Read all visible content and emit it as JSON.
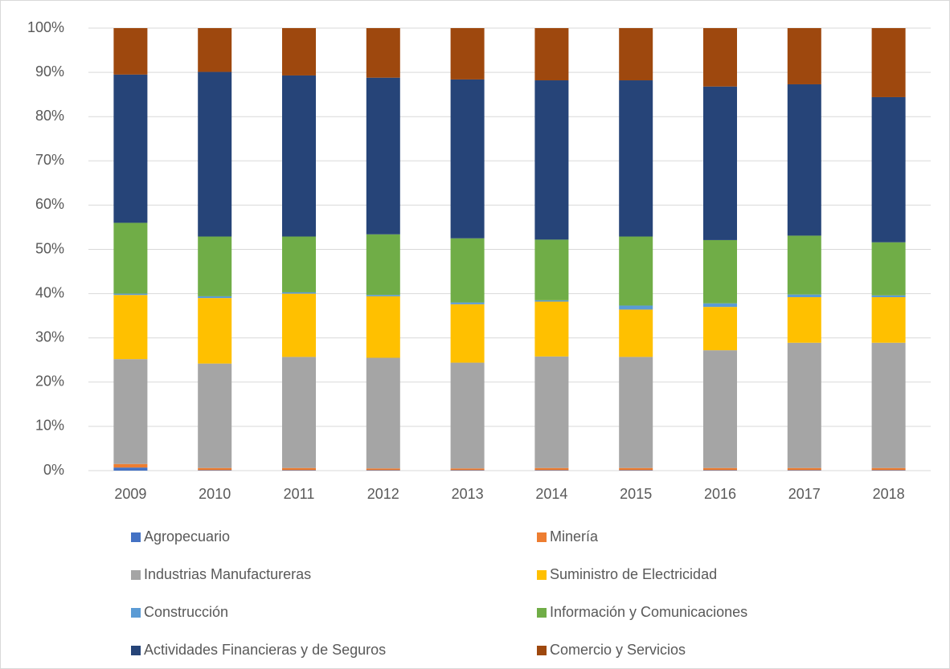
{
  "chart_data": {
    "type": "stacked_bar_100",
    "categories": [
      "2009",
      "2010",
      "2011",
      "2012",
      "2013",
      "2014",
      "2015",
      "2016",
      "2017",
      "2018"
    ],
    "series": [
      {
        "name": "Agropecuario",
        "color": "#4472c4",
        "values": [
          0.7,
          0.1,
          0.1,
          0.1,
          0.1,
          0.1,
          0.1,
          0.1,
          0.1,
          0.1
        ]
      },
      {
        "name": "Minería",
        "color": "#ed7d31",
        "values": [
          0.8,
          0.5,
          0.5,
          0.4,
          0.4,
          0.5,
          0.5,
          0.5,
          0.5,
          0.5
        ]
      },
      {
        "name": "Industrias Manufactureras",
        "color": "#a5a5a5",
        "values": [
          23.7,
          23.6,
          25.1,
          25.0,
          23.9,
          25.2,
          25.1,
          26.6,
          28.3,
          28.3
        ]
      },
      {
        "name": "Suministro de Electricidad",
        "color": "#ffc000",
        "values": [
          14.5,
          14.8,
          14.3,
          13.9,
          13.2,
          12.4,
          10.7,
          9.8,
          10.3,
          10.3
        ]
      },
      {
        "name": "Construcción",
        "color": "#5b9bd5",
        "values": [
          0.3,
          0.4,
          0.3,
          0.3,
          0.4,
          0.3,
          0.9,
          0.8,
          0.6,
          0.4
        ]
      },
      {
        "name": "Información y Comunicaciones",
        "color": "#70ad47",
        "values": [
          16.0,
          13.5,
          12.6,
          13.7,
          14.5,
          13.7,
          15.6,
          14.3,
          13.3,
          12.0
        ]
      },
      {
        "name": "Actividades Financieras y de Seguros",
        "color": "#264478",
        "values": [
          33.5,
          37.2,
          36.4,
          35.4,
          35.9,
          36.0,
          35.3,
          34.7,
          34.2,
          32.8
        ]
      },
      {
        "name": "Comercio y Servicios",
        "color": "#9e480e",
        "values": [
          10.5,
          9.9,
          10.7,
          11.2,
          11.6,
          11.8,
          11.8,
          13.2,
          12.7,
          15.6
        ]
      }
    ],
    "ylim": [
      0,
      100
    ],
    "yticks": [
      {
        "value": 0,
        "label": "0%"
      },
      {
        "value": 10,
        "label": "10%"
      },
      {
        "value": 20,
        "label": "20%"
      },
      {
        "value": 30,
        "label": "30%"
      },
      {
        "value": 40,
        "label": "40%"
      },
      {
        "value": 50,
        "label": "50%"
      },
      {
        "value": 60,
        "label": "60%"
      },
      {
        "value": 70,
        "label": "70%"
      },
      {
        "value": 80,
        "label": "80%"
      },
      {
        "value": 90,
        "label": "90%"
      },
      {
        "value": 100,
        "label": "100%"
      }
    ],
    "grid": true,
    "legend": "bottom"
  }
}
